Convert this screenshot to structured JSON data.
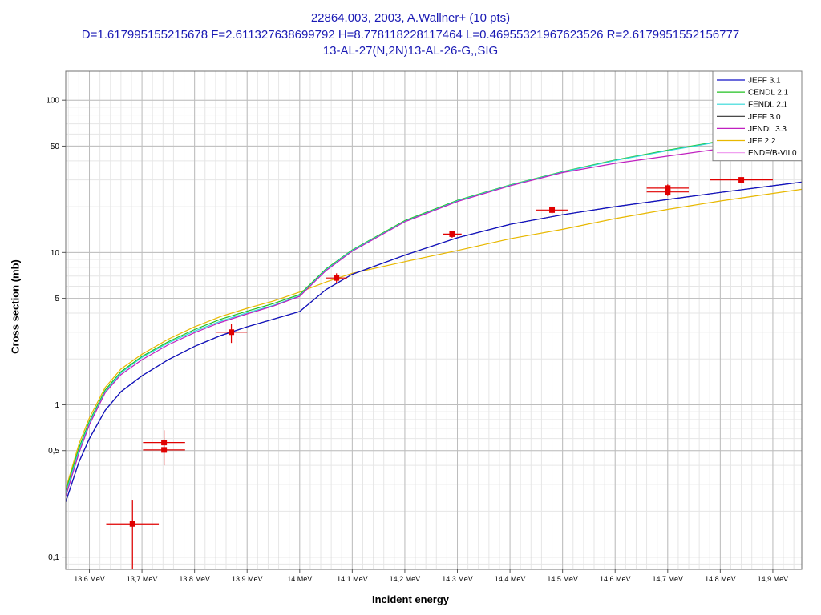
{
  "chart_data": {
    "type": "line",
    "title": [
      "22864.003, 2003, A.Wallner+ (10 pts)",
      "D=1.617995155215678 F=2.611327638699792 H=8.778118228117464 L=0.46955321967623526 R=2.6179951552156777",
      "13-AL-27(N,2N)13-AL-26-G,,SIG"
    ],
    "xlabel": "Incident energy",
    "ylabel": "Cross section (mb)",
    "xlim": [
      13.555,
      14.955
    ],
    "ylim": [
      0.083,
      155
    ],
    "yscale": "log",
    "grid": true,
    "legend_position": "top-right",
    "x_ticks": [
      {
        "v": 13.6,
        "label": "13,6 MeV"
      },
      {
        "v": 13.7,
        "label": "13,7 MeV"
      },
      {
        "v": 13.8,
        "label": "13,8 MeV"
      },
      {
        "v": 13.9,
        "label": "13,9 MeV"
      },
      {
        "v": 14.0,
        "label": "14 MeV"
      },
      {
        "v": 14.1,
        "label": "14,1 MeV"
      },
      {
        "v": 14.2,
        "label": "14,2 MeV"
      },
      {
        "v": 14.3,
        "label": "14,3 MeV"
      },
      {
        "v": 14.4,
        "label": "14,4 MeV"
      },
      {
        "v": 14.5,
        "label": "14,5 MeV"
      },
      {
        "v": 14.6,
        "label": "14,6 MeV"
      },
      {
        "v": 14.7,
        "label": "14,7 MeV"
      },
      {
        "v": 14.8,
        "label": "14,8 MeV"
      },
      {
        "v": 14.9,
        "label": "14,9 MeV"
      }
    ],
    "y_ticks": [
      {
        "v": 0.1,
        "label": "0,1"
      },
      {
        "v": 0.5,
        "label": "0,5"
      },
      {
        "v": 1,
        "label": "1"
      },
      {
        "v": 5,
        "label": "5"
      },
      {
        "v": 10,
        "label": "10"
      },
      {
        "v": 50,
        "label": "50"
      },
      {
        "v": 100,
        "label": "100"
      }
    ],
    "series": [
      {
        "name": "JEFF 3.1",
        "color": "#1010c8",
        "x": [
          13.555,
          13.58,
          13.6,
          13.63,
          13.66,
          13.7,
          13.75,
          13.8,
          13.85,
          13.9,
          13.95,
          14.0,
          14.05,
          14.1,
          14.2,
          14.3,
          14.4,
          14.5,
          14.6,
          14.7,
          14.8,
          14.955
        ],
        "y": [
          0.23,
          0.42,
          0.6,
          0.92,
          1.22,
          1.55,
          1.98,
          2.42,
          2.85,
          3.25,
          3.65,
          4.1,
          5.7,
          7.2,
          9.6,
          12.5,
          15.3,
          17.7,
          20.0,
          22.3,
          24.8,
          29.0
        ]
      },
      {
        "name": "CENDL 2.1",
        "color": "#20c020",
        "x": [
          13.555,
          13.58,
          13.6,
          13.63,
          13.66,
          13.7,
          13.75,
          13.8,
          13.85,
          13.9,
          13.95,
          14.0,
          14.05,
          14.1,
          14.2,
          14.3,
          14.4,
          14.5,
          14.6,
          14.7,
          14.8,
          14.9
        ],
        "y": [
          0.27,
          0.52,
          0.78,
          1.25,
          1.65,
          2.08,
          2.6,
          3.12,
          3.65,
          4.12,
          4.62,
          5.3,
          7.8,
          10.4,
          16.2,
          22.0,
          27.8,
          34.0,
          40.5,
          47.0,
          54.0,
          62.0
        ]
      },
      {
        "name": "FENDL 2.1",
        "color": "#30d8d8",
        "x": [
          13.555,
          13.58,
          13.6,
          13.63,
          13.66,
          13.7,
          13.75,
          13.8,
          13.85,
          13.9,
          13.95,
          14.0,
          14.05,
          14.1,
          14.2,
          14.3,
          14.4,
          14.5,
          14.6,
          14.7,
          14.8,
          14.9
        ],
        "y": [
          0.26,
          0.5,
          0.76,
          1.22,
          1.62,
          2.05,
          2.55,
          3.05,
          3.55,
          4.02,
          4.5,
          5.2,
          7.7,
          10.3,
          16.0,
          21.8,
          27.6,
          33.8,
          40.2,
          46.6,
          53.5,
          61.5
        ]
      },
      {
        "name": "JEFF 3.0",
        "color": "#303030",
        "x": [
          13.555,
          13.58,
          13.6,
          13.63,
          13.66,
          13.7,
          13.75,
          13.8,
          13.85,
          13.9,
          13.95,
          14.0,
          14.05,
          14.1,
          14.2,
          14.3,
          14.4,
          14.5,
          14.6,
          14.7,
          14.8,
          14.955
        ],
        "y": [
          0.23,
          0.42,
          0.6,
          0.92,
          1.22,
          1.55,
          1.98,
          2.42,
          2.85,
          3.25,
          3.65,
          4.1,
          5.7,
          7.2,
          9.6,
          12.5,
          15.3,
          17.7,
          20.0,
          22.3,
          24.8,
          29.0
        ]
      },
      {
        "name": "JENDL 3.3",
        "color": "#c020c0",
        "x": [
          13.555,
          13.58,
          13.6,
          13.63,
          13.66,
          13.7,
          13.75,
          13.8,
          13.85,
          13.9,
          13.95,
          14.0,
          14.05,
          14.1,
          14.2,
          14.3,
          14.4,
          14.5,
          14.6,
          14.7,
          14.8,
          14.9
        ],
        "y": [
          0.25,
          0.48,
          0.74,
          1.2,
          1.58,
          1.98,
          2.48,
          2.98,
          3.48,
          3.95,
          4.45,
          5.15,
          7.6,
          10.2,
          15.9,
          21.6,
          27.4,
          33.5,
          38.5,
          43.0,
          48.0,
          53.0
        ]
      },
      {
        "name": "JEF 2.2",
        "color": "#e8b800",
        "x": [
          13.555,
          13.58,
          13.6,
          13.63,
          13.66,
          13.7,
          13.75,
          13.8,
          13.85,
          13.9,
          13.95,
          14.0,
          14.05,
          14.1,
          14.2,
          14.3,
          14.4,
          14.5,
          14.6,
          14.7,
          14.8,
          14.955
        ],
        "y": [
          0.28,
          0.55,
          0.82,
          1.3,
          1.72,
          2.15,
          2.7,
          3.25,
          3.8,
          4.3,
          4.8,
          5.5,
          6.4,
          7.3,
          8.7,
          10.3,
          12.3,
          14.2,
          16.7,
          19.2,
          21.8,
          26.0
        ]
      },
      {
        "name": "ENDF/B-VII.0",
        "color": "#f0a0f0",
        "x": [],
        "y": []
      }
    ],
    "points": [
      {
        "x": 13.682,
        "y": 0.165,
        "xerr": 0.05,
        "ylo": 0.08,
        "yhi": 0.235
      },
      {
        "x": 13.742,
        "y": 0.565,
        "xerr": 0.04,
        "ylo": 0.5,
        "yhi": 0.68
      },
      {
        "x": 13.742,
        "y": 0.505,
        "xerr": 0.04,
        "ylo": 0.4,
        "yhi": 0.56
      },
      {
        "x": 13.87,
        "y": 3.0,
        "xerr": 0.03,
        "ylo": 2.55,
        "yhi": 3.4
      },
      {
        "x": 14.07,
        "y": 6.8,
        "xerr": 0.02,
        "ylo": 6.3,
        "yhi": 7.3
      },
      {
        "x": 14.29,
        "y": 13.2,
        "xerr": 0.018,
        "ylo": 12.5,
        "yhi": 13.9
      },
      {
        "x": 14.48,
        "y": 19.0,
        "xerr": 0.03,
        "ylo": 18.0,
        "yhi": 20.0
      },
      {
        "x": 14.7,
        "y": 26.5,
        "xerr": 0.04,
        "ylo": 25.0,
        "yhi": 28.0
      },
      {
        "x": 14.7,
        "y": 25.0,
        "xerr": 0.04,
        "ylo": 23.5,
        "yhi": 26.5
      },
      {
        "x": 14.84,
        "y": 30.0,
        "xerr": 0.06,
        "ylo": 29.0,
        "yhi": 31.0
      }
    ]
  }
}
